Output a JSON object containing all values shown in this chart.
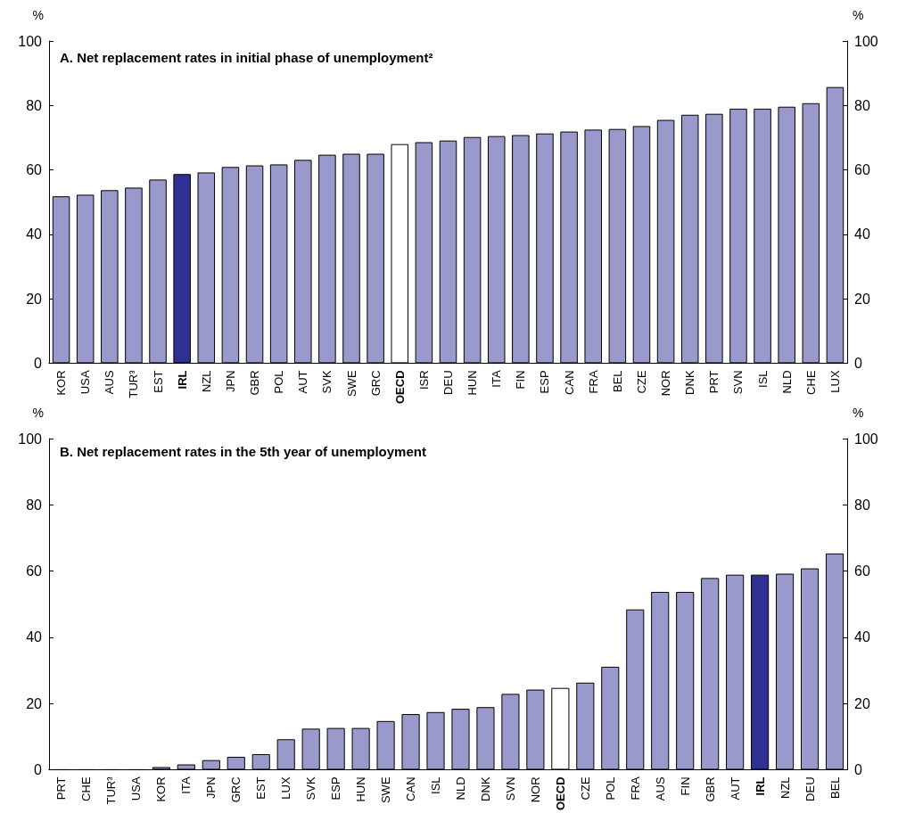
{
  "chart_data": [
    {
      "type": "bar",
      "title": "A. Net replacement rates in initial phase of unemployment²",
      "ylabel": "%",
      "y2label": "%",
      "categories": [
        "KOR",
        "USA",
        "AUS",
        "TUR³",
        "EST",
        "IRL",
        "NZL",
        "JPN",
        "GBR",
        "POL",
        "AUT",
        "SVK",
        "SWE",
        "GRC",
        "OECD",
        "ISR",
        "DEU",
        "HUN",
        "ITA",
        "FIN",
        "ESP",
        "CAN",
        "FRA",
        "BEL",
        "CZE",
        "NOR",
        "DNK",
        "PRT",
        "SVN",
        "ISL",
        "NLD",
        "CHE",
        "LUX"
      ],
      "values": [
        51.8,
        52.3,
        53.7,
        54.5,
        57,
        58.7,
        59.2,
        60.9,
        61.4,
        61.7,
        63.1,
        64.7,
        65,
        65,
        68,
        68.6,
        69.1,
        70.2,
        70.5,
        70.8,
        71.3,
        71.9,
        72.5,
        72.7,
        73.6,
        75.5,
        77.1,
        77.4,
        79,
        79,
        79.6,
        80.7,
        85.7
      ],
      "colors": [
        "#9999cc",
        "#9999cc",
        "#9999cc",
        "#9999cc",
        "#9999cc",
        "#2e3192",
        "#9999cc",
        "#9999cc",
        "#9999cc",
        "#9999cc",
        "#9999cc",
        "#9999cc",
        "#9999cc",
        "#9999cc",
        "#ffffff",
        "#9999cc",
        "#9999cc",
        "#9999cc",
        "#9999cc",
        "#9999cc",
        "#9999cc",
        "#9999cc",
        "#9999cc",
        "#9999cc",
        "#9999cc",
        "#9999cc",
        "#9999cc",
        "#9999cc",
        "#9999cc",
        "#9999cc",
        "#9999cc",
        "#9999cc",
        "#9999cc"
      ],
      "ylim": [
        0,
        100
      ],
      "yticks": [
        0,
        20,
        40,
        60,
        80,
        100
      ],
      "y2lim": [
        0,
        100
      ],
      "y2ticks": [
        0,
        20,
        40,
        60,
        80,
        100
      ],
      "grid": false
    },
    {
      "type": "bar",
      "title": "B. Net replacement rates in the 5th year of unemployment",
      "ylabel": "%",
      "y2label": "%",
      "categories": [
        "PRT",
        "CHE",
        "TUR³",
        "USA",
        "KOR",
        "ITA",
        "JPN",
        "GRC",
        "EST",
        "LUX",
        "SVK",
        "ESP",
        "HUN",
        "SWE",
        "CAN",
        "ISL",
        "NLD",
        "DNK",
        "SVN",
        "NOR",
        "OECD",
        "CZE",
        "POL",
        "FRA",
        "AUS",
        "FIN",
        "GBR",
        "AUT",
        "IRL",
        "NZL",
        "DEU",
        "BEL"
      ],
      "values": [
        0,
        0,
        0,
        0,
        0.8,
        1.6,
        2.9,
        3.9,
        4.7,
        9.2,
        12.4,
        12.6,
        12.6,
        14.7,
        16.8,
        17.4,
        18.4,
        18.9,
        22.9,
        24.2,
        24.7,
        26.3,
        31.1,
        48.4,
        53.7,
        53.7,
        57.9,
        58.9,
        58.9,
        59.2,
        60.8,
        65.3
      ],
      "colors": [
        "#9999cc",
        "#9999cc",
        "#9999cc",
        "#9999cc",
        "#9999cc",
        "#9999cc",
        "#9999cc",
        "#9999cc",
        "#9999cc",
        "#9999cc",
        "#9999cc",
        "#9999cc",
        "#9999cc",
        "#9999cc",
        "#9999cc",
        "#9999cc",
        "#9999cc",
        "#9999cc",
        "#9999cc",
        "#9999cc",
        "#ffffff",
        "#9999cc",
        "#9999cc",
        "#9999cc",
        "#9999cc",
        "#9999cc",
        "#9999cc",
        "#9999cc",
        "#2e3192",
        "#9999cc",
        "#9999cc",
        "#9999cc"
      ],
      "ylim": [
        0,
        100
      ],
      "yticks": [
        0,
        20,
        40,
        60,
        80,
        100
      ],
      "y2lim": [
        0,
        100
      ],
      "y2ticks": [
        0,
        20,
        40,
        60,
        80,
        100
      ],
      "grid": false
    }
  ]
}
